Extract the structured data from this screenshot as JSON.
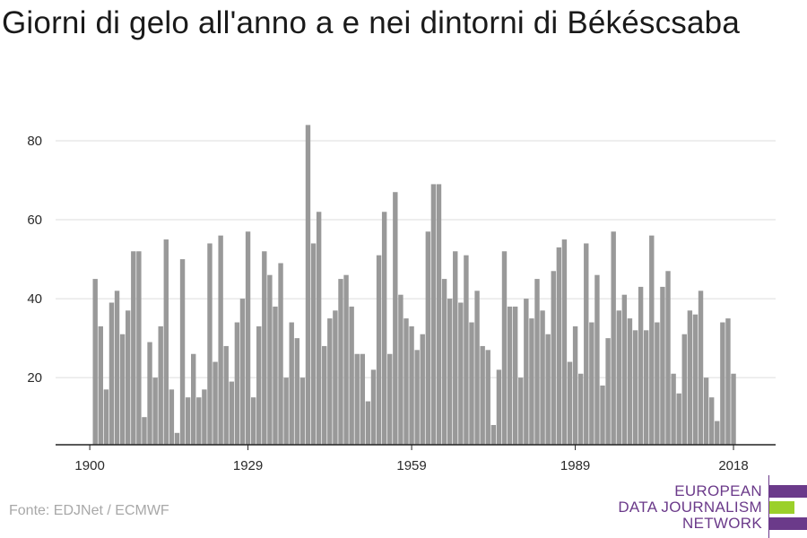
{
  "header": {
    "title": "Giorni di gelo all'anno a e nei dintorni di Békéscsaba"
  },
  "footer": {
    "source": "Fonte: EDJNet / ECMWF"
  },
  "logo": {
    "line1": "EUROPEAN",
    "line2": "DATA JOURNALISM",
    "line3": "NETWORK",
    "colors": {
      "text": "#6b3a8a",
      "bar_purple": "#6b3a8a",
      "bar_green": "#9bd02a"
    }
  },
  "chart_data": {
    "type": "bar",
    "title": "Giorni di gelo all'anno a e nei dintorni di Békéscsaba",
    "xlabel": "",
    "ylabel": "",
    "ylim": [
      0,
      86
    ],
    "yticks": [
      20,
      40,
      60,
      80
    ],
    "xticks": [
      1900,
      1929,
      1959,
      1989,
      2018
    ],
    "grid": true,
    "bar_color": "#999999",
    "x": [
      1901,
      1902,
      1903,
      1904,
      1905,
      1906,
      1907,
      1908,
      1909,
      1910,
      1911,
      1912,
      1913,
      1914,
      1915,
      1916,
      1917,
      1918,
      1919,
      1920,
      1921,
      1922,
      1923,
      1924,
      1925,
      1926,
      1927,
      1928,
      1929,
      1930,
      1931,
      1932,
      1933,
      1934,
      1935,
      1936,
      1937,
      1938,
      1939,
      1940,
      1941,
      1942,
      1943,
      1944,
      1945,
      1946,
      1947,
      1948,
      1949,
      1950,
      1951,
      1952,
      1953,
      1954,
      1955,
      1956,
      1957,
      1958,
      1959,
      1960,
      1961,
      1962,
      1963,
      1964,
      1965,
      1966,
      1967,
      1968,
      1969,
      1970,
      1971,
      1972,
      1973,
      1974,
      1975,
      1976,
      1977,
      1978,
      1979,
      1980,
      1981,
      1982,
      1983,
      1984,
      1985,
      1986,
      1987,
      1988,
      1989,
      1990,
      1991,
      1992,
      1993,
      1994,
      1995,
      1996,
      1997,
      1998,
      1999,
      2000,
      2001,
      2002,
      2003,
      2004,
      2005,
      2006,
      2007,
      2008,
      2009,
      2010,
      2011,
      2012,
      2013,
      2014,
      2015,
      2016,
      2017,
      2018
    ],
    "values": [
      45,
      33,
      17,
      39,
      42,
      31,
      37,
      52,
      52,
      10,
      29,
      20,
      33,
      55,
      17,
      6,
      50,
      15,
      26,
      15,
      17,
      54,
      24,
      56,
      28,
      19,
      34,
      40,
      57,
      15,
      33,
      52,
      46,
      38,
      49,
      20,
      34,
      30,
      20,
      84,
      54,
      62,
      28,
      35,
      37,
      45,
      46,
      38,
      26,
      26,
      14,
      22,
      51,
      62,
      26,
      67,
      41,
      35,
      33,
      27,
      31,
      57,
      69,
      69,
      45,
      40,
      52,
      39,
      51,
      34,
      42,
      28,
      27,
      8,
      22,
      52,
      38,
      38,
      20,
      40,
      35,
      45,
      37,
      31,
      47,
      53,
      55,
      24,
      33,
      21,
      54,
      34,
      46,
      18,
      30,
      57,
      37,
      41,
      35,
      32,
      43,
      32,
      56,
      34,
      43,
      47,
      21,
      16,
      31,
      37,
      36,
      42,
      20,
      15,
      9,
      34,
      35,
      21
    ]
  }
}
